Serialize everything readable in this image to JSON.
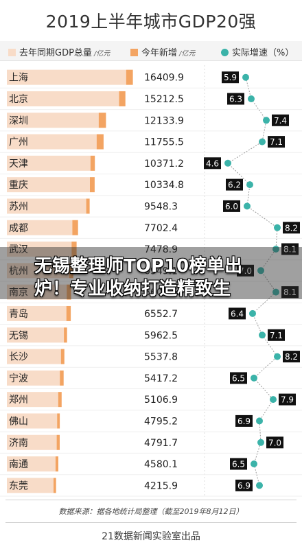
{
  "colors": {
    "last_year": "#f8dcc8",
    "increase": "#f3a462",
    "growth_dot": "#3bb3a9",
    "growth_box": "#111111",
    "text": "#222222"
  },
  "legend": {
    "unit": "/亿元"
  },
  "chart_data": {
    "type": "bar",
    "title": "2019上半年城市GDP20强",
    "xlabel": "",
    "ylabel": "",
    "legend_position": "top",
    "grid": false,
    "categories": [
      "上海",
      "北京",
      "深圳",
      "广州",
      "天津",
      "重庆",
      "苏州",
      "成都",
      "武汉",
      "杭州",
      "南京",
      "青岛",
      "无锡",
      "长沙",
      "宁波",
      "郑州",
      "佛山",
      "济南",
      "南通",
      "东莞"
    ],
    "totals": [
      16409.9,
      15212.5,
      12133.9,
      11755.5,
      10371.2,
      10334.8,
      9548.3,
      7702.4,
      7478.9,
      6949.1,
      6600.6,
      6552.7,
      5962.5,
      5537.8,
      5417.2,
      5106.9,
      4795.2,
      4791.7,
      4580.1,
      4215.9
    ],
    "series": [
      {
        "name": "去年同期GDP总量",
        "values": [
          15339.9,
          14212.5,
          10983.9,
          10655.5,
          9671.2,
          9584.8,
          8998.3,
          6802.4,
          6678.9,
          6299.1,
          5900.6,
          5852.7,
          5462.5,
          4987.8,
          4817.2,
          4556.9,
          4375.2,
          4311.7,
          4130.1,
          3815.9
        ]
      },
      {
        "name": "今年新增",
        "values": [
          1070,
          1000,
          1150,
          1100,
          700,
          750,
          550,
          900,
          800,
          650,
          700,
          700,
          500,
          550,
          600,
          550,
          420,
          480,
          450,
          400
        ]
      },
      {
        "name": "实际增速（%）",
        "type": "scatter",
        "values": [
          5.9,
          6.3,
          7.4,
          7.1,
          4.6,
          6.2,
          6.0,
          8.2,
          8.1,
          7.0,
          8.1,
          6.4,
          7.1,
          8.2,
          6.5,
          7.9,
          6.9,
          7.0,
          6.5,
          6.9
        ]
      }
    ]
  },
  "banner": {
    "line1": "无锡整理师TOP10榜单出",
    "line2": "炉！专业收纳打造精致生"
  },
  "footer": {
    "source": "数据来源：据各地统计局整理（截至2019年8月12日）",
    "credit": "21数据新闻实验室出品"
  }
}
